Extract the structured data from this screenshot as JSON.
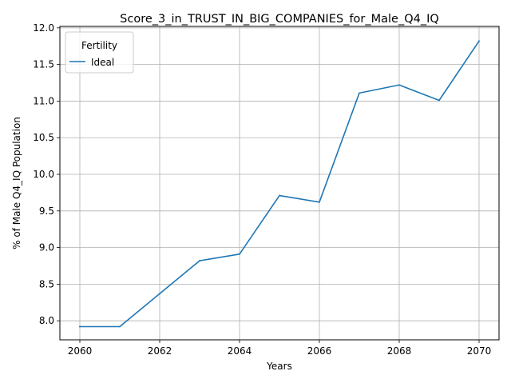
{
  "chart_data": {
    "type": "line",
    "title": "Score_3_in_TRUST_IN_BIG_COMPANIES_for_Male_Q4_IQ",
    "xlabel": "Years",
    "ylabel": "% of Male Q4_IQ Population",
    "xlim": [
      2059.5,
      2070.5
    ],
    "ylim": [
      7.74,
      12.02
    ],
    "xticks": [
      2060,
      2062,
      2064,
      2066,
      2068,
      2070
    ],
    "xtick_labels": [
      "2060",
      "2062",
      "2064",
      "2066",
      "2068",
      "2070"
    ],
    "yticks": [
      8.0,
      8.5,
      9.0,
      9.5,
      10.0,
      10.5,
      11.0,
      11.5,
      12.0
    ],
    "ytick_labels": [
      "8.0",
      "8.5",
      "9.0",
      "9.5",
      "10.0",
      "10.5",
      "11.0",
      "11.5",
      "12.0"
    ],
    "grid": true,
    "legend": {
      "title": "Fertility",
      "position": "upper-left"
    },
    "x": [
      2060,
      2061,
      2062,
      2063,
      2064,
      2065,
      2066,
      2067,
      2068,
      2069,
      2070
    ],
    "series": [
      {
        "name": "Ideal",
        "color": "#1f77b4",
        "values": [
          7.92,
          7.92,
          8.37,
          8.82,
          8.91,
          9.71,
          9.62,
          11.11,
          11.22,
          11.01,
          11.82
        ]
      }
    ]
  }
}
